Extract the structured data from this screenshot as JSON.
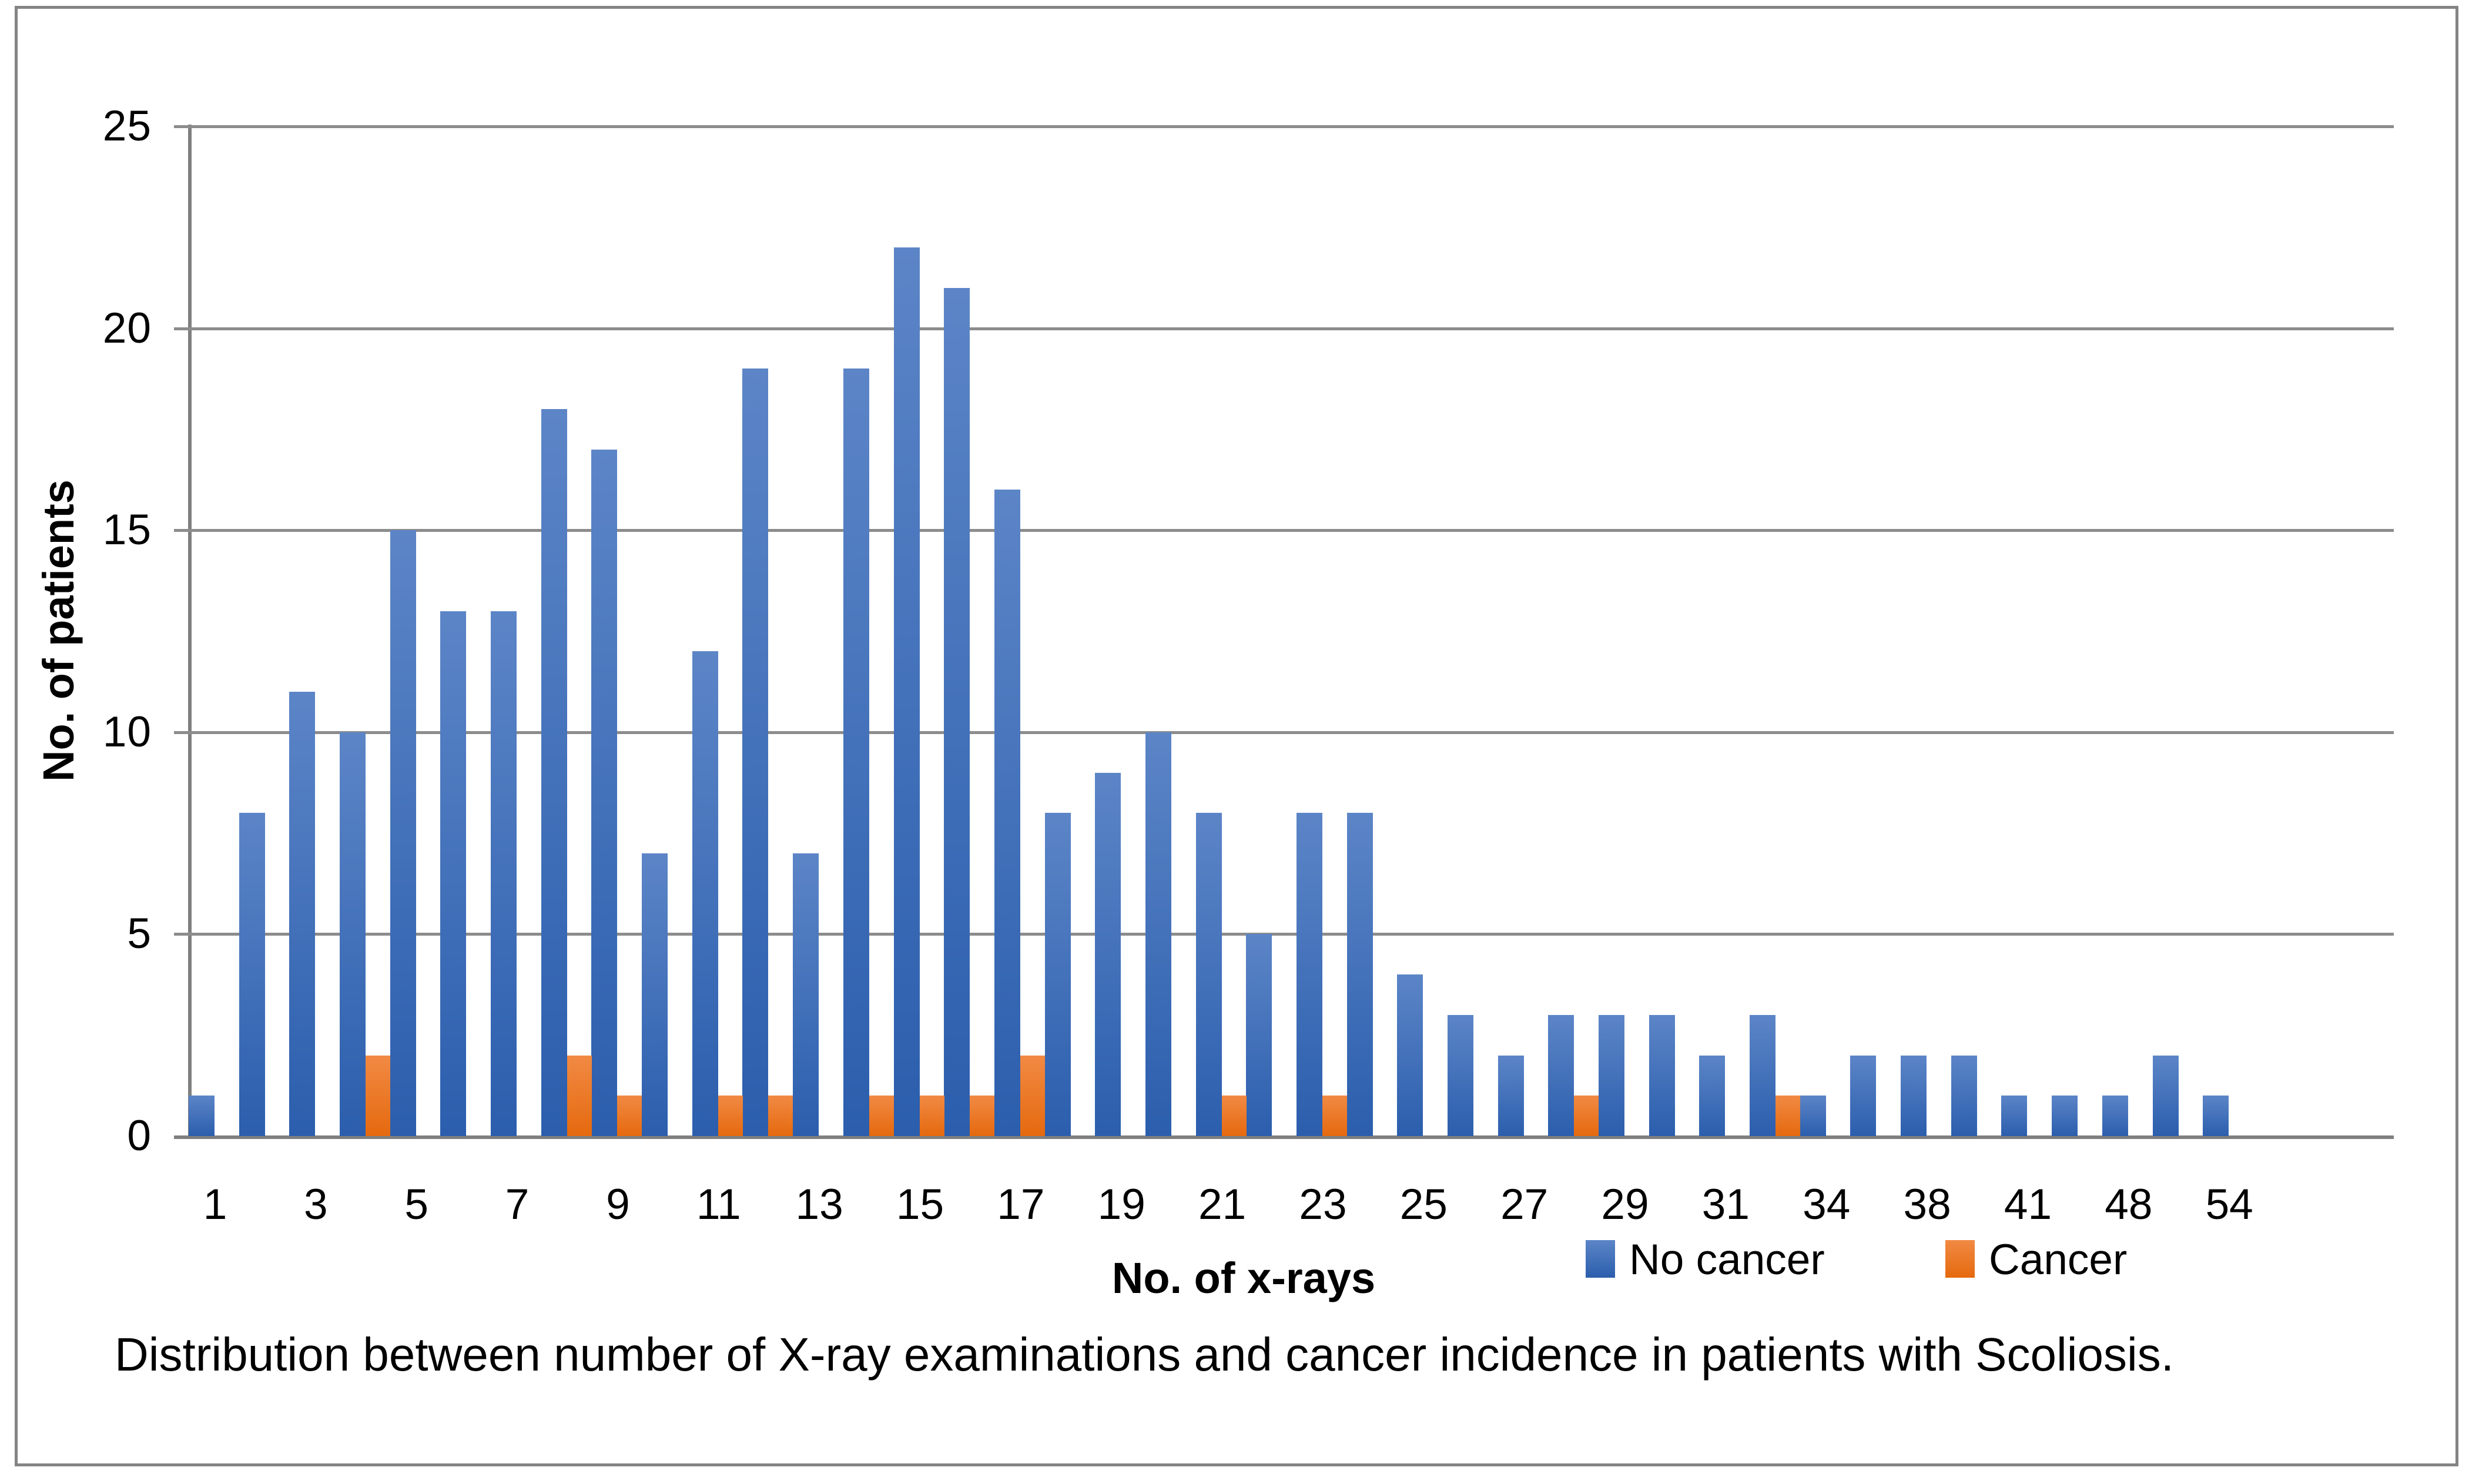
{
  "figure": {
    "caption": "Distribution between number of X-ray examinations and cancer incidence in patients with Scoliosis."
  },
  "legend": {
    "no_cancer_label": "No cancer",
    "cancer_label": "Cancer"
  },
  "chart_data": {
    "type": "bar",
    "title": "",
    "xlabel": "No. of x-rays",
    "ylabel": "No. of patients",
    "ylim": [
      0,
      25
    ],
    "yticks": [
      0,
      5,
      10,
      15,
      20,
      25
    ],
    "grid": true,
    "legend_position": "bottom",
    "categories": [
      "1",
      "",
      "3",
      "",
      "5",
      "",
      "7",
      "",
      "9",
      "",
      "11",
      "",
      "13",
      "",
      "15",
      "",
      "17",
      "",
      "19",
      "",
      "21",
      "",
      "23",
      "",
      "25",
      "",
      "27",
      "",
      "29",
      "",
      "31",
      "",
      "34",
      "",
      "38",
      "",
      "41",
      "",
      "48",
      "",
      "54"
    ],
    "series": [
      {
        "name": "No cancer",
        "color": "#2E61AE",
        "values": [
          1,
          8,
          11,
          10,
          15,
          13,
          13,
          18,
          17,
          7,
          12,
          19,
          7,
          19,
          22,
          21,
          16,
          8,
          9,
          10,
          8,
          5,
          8,
          8,
          4,
          3,
          2,
          3,
          3,
          3,
          2,
          3,
          1,
          2,
          2,
          2,
          1,
          1,
          1,
          2,
          1
        ]
      },
      {
        "name": "Cancer",
        "color": "#E66A0F",
        "values": [
          0,
          0,
          0,
          2,
          0,
          0,
          0,
          2,
          1,
          0,
          1,
          1,
          0,
          1,
          1,
          1,
          2,
          0,
          0,
          0,
          1,
          0,
          1,
          0,
          0,
          0,
          0,
          1,
          0,
          0,
          0,
          1,
          0,
          0,
          0,
          0,
          0,
          0,
          0,
          0,
          0
        ]
      }
    ],
    "colors": {
      "no_cancer_top": "#5C85C7",
      "no_cancer_bottom": "#2B5EAD",
      "cancer_top": "#F18A44",
      "cancer_bottom": "#E5690E",
      "gridline": "#8C8C8C",
      "axis": "#7F7F7F",
      "border": "#848484",
      "text": "#000000"
    }
  }
}
